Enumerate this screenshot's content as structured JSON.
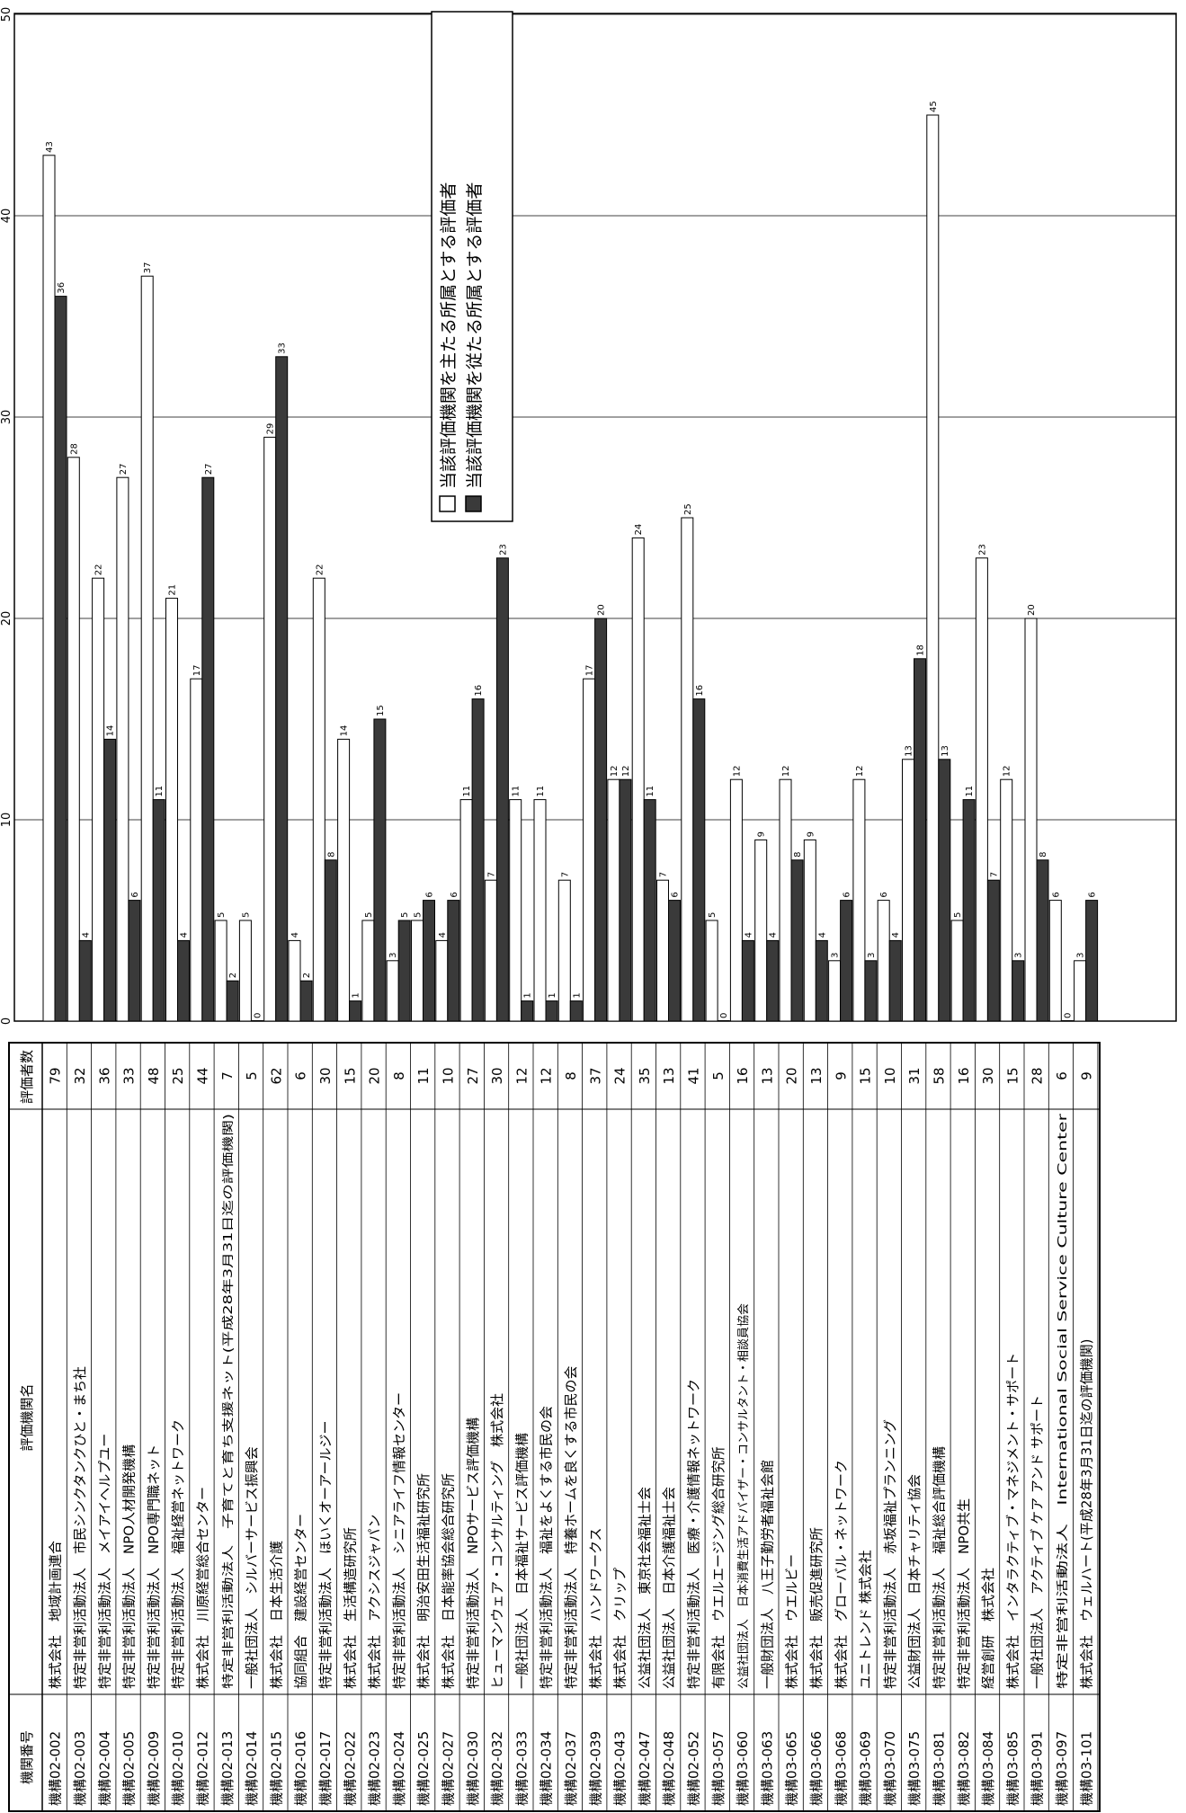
{
  "table": {
    "headers": {
      "id": "機関番号",
      "name": "評価機関名",
      "count": "評価者数"
    }
  },
  "legend": {
    "primary_label": "当該評価機関を主たる所属とする評価者",
    "secondary_label": "当該評価機関を従たる所属とする評価者",
    "position": "top-center"
  },
  "colors": {
    "primary": "#ffffff",
    "secondary": "#3a3a3a",
    "outline": "#000000"
  },
  "chart_data": {
    "type": "bar",
    "orientation": "horizontal",
    "ylim": [
      0,
      50
    ],
    "ticks": [
      0,
      10,
      20,
      30,
      40,
      50
    ],
    "grid": true,
    "categories": [
      {
        "id": "機構02-002",
        "name": "株式会社　地域計画連合",
        "count": "79"
      },
      {
        "id": "機構02-003",
        "name": "特定非営利活動法人　市民シンクタンクひと・まち社",
        "count": "32"
      },
      {
        "id": "機構02-004",
        "name": "特定非営利活動法人　メイアイヘルプユー",
        "count": "36"
      },
      {
        "id": "機構02-005",
        "name": "特定非営利活動法人　NPO人材開発機構",
        "count": "33"
      },
      {
        "id": "機構02-009",
        "name": "特定非営利活動法人　NPO専門職ネット",
        "count": "48"
      },
      {
        "id": "機構02-010",
        "name": "特定非営利活動法人　福祉経営ネットワーク",
        "count": "25"
      },
      {
        "id": "機構02-012",
        "name": "株式会社　川原経営総合センター",
        "count": "44"
      },
      {
        "id": "機構02-013",
        "name": "特定非営利活動法人　子育てと育ち支援ネット(平成28年3月31日迄の評価機関)",
        "count": "7"
      },
      {
        "id": "機構02-014",
        "name": "一般社団法人　シルバーサービス振興会",
        "count": "5"
      },
      {
        "id": "機構02-015",
        "name": "株式会社　日本生活介護",
        "count": "62"
      },
      {
        "id": "機構02-016",
        "name": "協同組合　建設経営センター",
        "count": "6"
      },
      {
        "id": "機構02-017",
        "name": "特定非営利活動法人　ほいくオーアールジー",
        "count": "30"
      },
      {
        "id": "機構02-022",
        "name": "株式会社　生活構造研究所",
        "count": "15"
      },
      {
        "id": "機構02-023",
        "name": "株式会社　アクシスジャパン",
        "count": "20"
      },
      {
        "id": "機構02-024",
        "name": "特定非営利活動法人　シニアライフ情報センター",
        "count": "8"
      },
      {
        "id": "機構02-025",
        "name": "株式会社　明治安田生活福祉研究所",
        "count": "11"
      },
      {
        "id": "機構02-027",
        "name": "株式会社　日本能率協会総合研究所",
        "count": "10"
      },
      {
        "id": "機構02-030",
        "name": "特定非営利活動法人　NPOサービス評価機構",
        "count": "27"
      },
      {
        "id": "機構02-032",
        "name": "ヒューマンウェア・コンサルティング　株式会社",
        "count": "30"
      },
      {
        "id": "機構02-033",
        "name": "一般社団法人　日本福祉サービス評価機構",
        "count": "12"
      },
      {
        "id": "機構02-034",
        "name": "特定非営利活動法人　福祉をよくする市民の会",
        "count": "12"
      },
      {
        "id": "機構02-037",
        "name": "特定非営利活動法人　特養ホームを良くする市民の会",
        "count": "8"
      },
      {
        "id": "機構02-039",
        "name": "株式会社　ハンドワークス",
        "count": "37"
      },
      {
        "id": "機構02-043",
        "name": "株式会社　クリップ",
        "count": "24"
      },
      {
        "id": "機構02-047",
        "name": "公益社団法人　東京社会福祉士会",
        "count": "35"
      },
      {
        "id": "機構02-048",
        "name": "公益社団法人　日本介護福祉士会",
        "count": "13"
      },
      {
        "id": "機構02-052",
        "name": "特定非営利活動法人　医療・介護情報ネットワーク",
        "count": "41"
      },
      {
        "id": "機構03-057",
        "name": "有限会社　ウエルエージング総合研究所",
        "count": "5"
      },
      {
        "id": "機構03-060",
        "name": "公益社団法人　日本消費生活アドバイザー・コンサルタント・相談員協会",
        "count": "16"
      },
      {
        "id": "機構03-063",
        "name": "一般財団法人　八王子勤労者福祉会館",
        "count": "13"
      },
      {
        "id": "機構03-065",
        "name": "株式会社　ウエルビー",
        "count": "20"
      },
      {
        "id": "機構03-066",
        "name": "株式会社　販売促進研究所",
        "count": "13"
      },
      {
        "id": "機構03-068",
        "name": "株式会社　グローバル・ネットワーク",
        "count": "9"
      },
      {
        "id": "機構03-069",
        "name": "ユニトレンド 株式会社",
        "count": "15"
      },
      {
        "id": "機構03-070",
        "name": "特定非営利活動法人　赤坂福祉プランニング",
        "count": "10"
      },
      {
        "id": "機構03-075",
        "name": "公益財団法人　日本チャリティ協会",
        "count": "31"
      },
      {
        "id": "機構03-081",
        "name": "特定非営利活動法人　福祉総合評価機構",
        "count": "58"
      },
      {
        "id": "機構03-082",
        "name": "特定非営利活動法人　NPO共生",
        "count": "16"
      },
      {
        "id": "機構03-084",
        "name": "経営創研　株式会社",
        "count": "30"
      },
      {
        "id": "機構03-085",
        "name": "株式会社　インタラクティブ・マネジメント・サポート",
        "count": "15"
      },
      {
        "id": "機構03-091",
        "name": "一般社団法人　アクティブ ケア アンド サポート",
        "count": "28"
      },
      {
        "id": "機構03-097",
        "name": "特定非営利活動法人　International Social Service Culture Center",
        "count": "6"
      },
      {
        "id": "機構03-101",
        "name": "株式会社　ウェルハート(平成28年3月31日迄の評価機関)",
        "count": "9"
      }
    ],
    "series": [
      {
        "name": "当該評価機関を主たる所属とする評価者",
        "values": [
          43,
          28,
          22,
          27,
          37,
          21,
          17,
          5,
          5,
          29,
          4,
          22,
          14,
          5,
          3,
          5,
          4,
          11,
          7,
          11,
          11,
          7,
          17,
          12,
          24,
          7,
          25,
          5,
          12,
          9,
          12,
          9,
          3,
          12,
          6,
          13,
          45,
          5,
          23,
          12,
          20,
          6,
          3
        ]
      },
      {
        "name": "当該評価機関を従たる所属とする評価者",
        "values": [
          36,
          4,
          14,
          6,
          11,
          4,
          27,
          2,
          0,
          33,
          2,
          8,
          1,
          15,
          5,
          6,
          6,
          16,
          23,
          1,
          1,
          1,
          20,
          12,
          11,
          6,
          16,
          0,
          4,
          4,
          8,
          4,
          6,
          3,
          4,
          18,
          13,
          11,
          7,
          3,
          8,
          0,
          6
        ]
      }
    ]
  }
}
